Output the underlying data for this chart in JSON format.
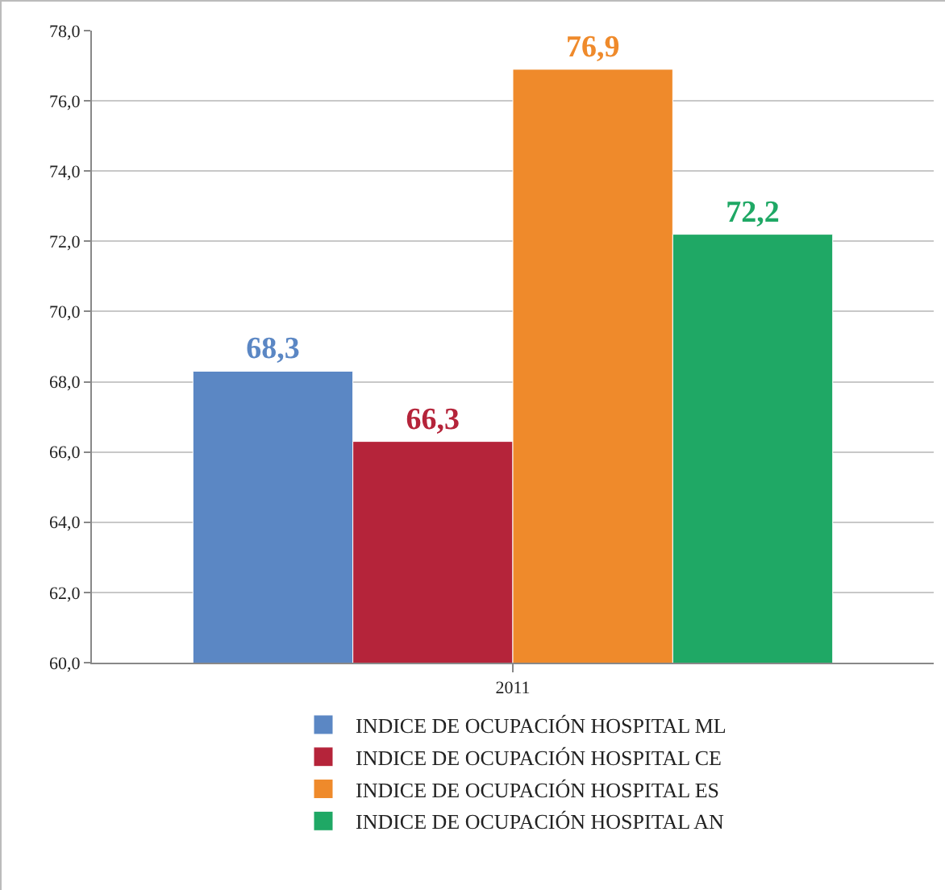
{
  "chart_data": {
    "type": "bar",
    "categories": [
      "2011"
    ],
    "series": [
      {
        "name": "INDICE DE OCUPACIÓN HOSPITAL ML",
        "color": "#5b87c4",
        "values": [
          68.3
        ],
        "value_labels": [
          "68,3"
        ]
      },
      {
        "name": "INDICE DE OCUPACIÓN HOSPITAL CE",
        "color": "#b5243a",
        "values": [
          66.3
        ],
        "value_labels": [
          "66,3"
        ]
      },
      {
        "name": "INDICE DE OCUPACIÓN HOSPITAL ES",
        "color": "#ef8a2b",
        "values": [
          76.9
        ],
        "value_labels": [
          "76,9"
        ]
      },
      {
        "name": "INDICE DE OCUPACIÓN HOSPITAL AN",
        "color": "#1fa865",
        "values": [
          72.2
        ],
        "value_labels": [
          "72,2"
        ]
      }
    ],
    "ylim": [
      60,
      78
    ],
    "yticks": [
      {
        "value": 60,
        "label": "60,0"
      },
      {
        "value": 62,
        "label": "62,0"
      },
      {
        "value": 64,
        "label": "64,0"
      },
      {
        "value": 66,
        "label": "66,0"
      },
      {
        "value": 68,
        "label": "68,0"
      },
      {
        "value": 70,
        "label": "70,0"
      },
      {
        "value": 72,
        "label": "72,0"
      },
      {
        "value": 74,
        "label": "74,0"
      },
      {
        "value": 76,
        "label": "76,0"
      },
      {
        "value": 78,
        "label": "78,0"
      }
    ],
    "grid": "y",
    "legend": "bottom"
  }
}
